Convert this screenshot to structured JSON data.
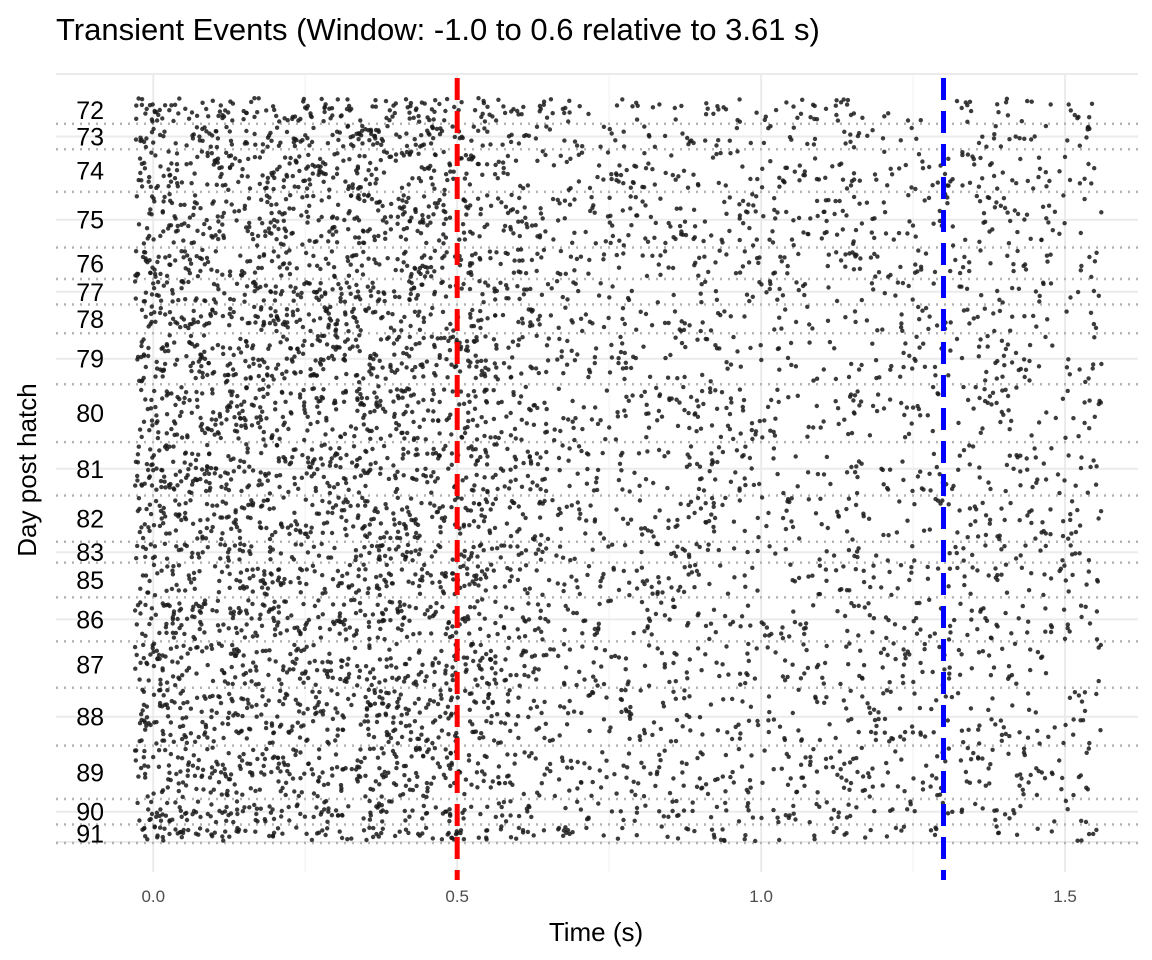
{
  "chart_data": {
    "type": "scatter",
    "title": "Transient Events (Window: -1.0 to 0.6 relative to 3.61 s)",
    "xlabel": "Time (s)",
    "ylabel": "Day post hatch",
    "xlim": [
      -0.16,
      1.62
    ],
    "x_ticks": [
      0.0,
      0.5,
      1.0,
      1.5
    ],
    "x_tick_labels": [
      "0.0",
      "0.5",
      "1.0",
      "1.5"
    ],
    "grid": true,
    "legend": "none",
    "rows": [
      {
        "label": "72",
        "events": 60
      },
      {
        "label": "73",
        "events": 55
      },
      {
        "label": "74",
        "events": 92
      },
      {
        "label": "75",
        "events": 120
      },
      {
        "label": "76",
        "events": 68
      },
      {
        "label": "77",
        "events": 55
      },
      {
        "label": "78",
        "events": 62
      },
      {
        "label": "79",
        "events": 110
      },
      {
        "label": "80",
        "events": 125
      },
      {
        "label": "81",
        "events": 115
      },
      {
        "label": "82",
        "events": 100
      },
      {
        "label": "83",
        "events": 45
      },
      {
        "label": "85",
        "events": 75
      },
      {
        "label": "86",
        "events": 95
      },
      {
        "label": "87",
        "events": 100
      },
      {
        "label": "88",
        "events": 125
      },
      {
        "label": "89",
        "events": 115
      },
      {
        "label": "90",
        "events": 55
      },
      {
        "label": "91",
        "events": 40
      }
    ],
    "event_time_range": [
      -0.03,
      1.56
    ],
    "vlines": [
      {
        "x": 0.5,
        "color": "#ff0000",
        "style": "dashed"
      },
      {
        "x": 1.3,
        "color": "#0000ff",
        "style": "dashed"
      }
    ],
    "colors": {
      "points": "#1a1a1a",
      "vline_red": "#ff0000",
      "vline_blue": "#0000ff"
    }
  }
}
